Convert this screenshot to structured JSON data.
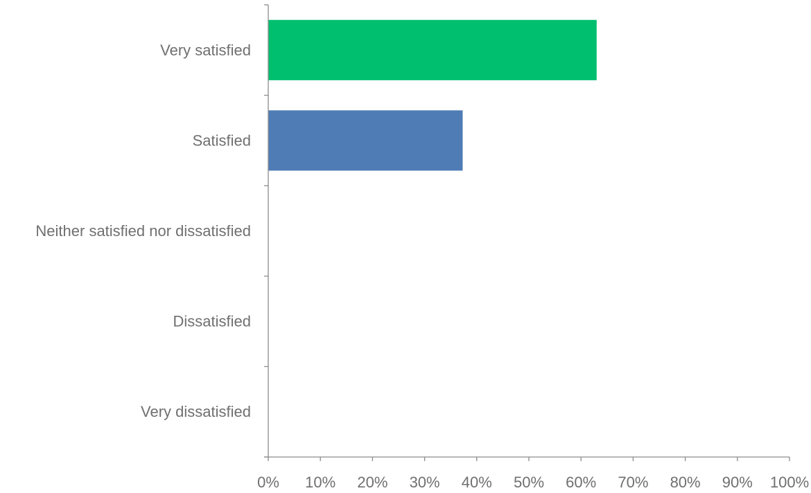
{
  "chart_data": {
    "type": "bar",
    "orientation": "horizontal",
    "categories": [
      "Very satisfied",
      "Satisfied",
      "Neither satisfied nor dissatisfied",
      "Dissatisfied",
      "Very dissatisfied"
    ],
    "values": [
      63,
      37.3,
      0,
      0,
      0
    ],
    "bar_colors": [
      "#00bf6f",
      "#507cb6",
      "#507cb6",
      "#507cb6",
      "#507cb6"
    ],
    "xlim": [
      0,
      100
    ],
    "x_ticks": [
      0,
      10,
      20,
      30,
      40,
      50,
      60,
      70,
      80,
      90,
      100
    ],
    "x_tick_labels": [
      "0%",
      "10%",
      "20%",
      "30%",
      "40%",
      "50%",
      "60%",
      "70%",
      "80%",
      "90%",
      "100%"
    ],
    "grid": false,
    "legend": "none"
  }
}
